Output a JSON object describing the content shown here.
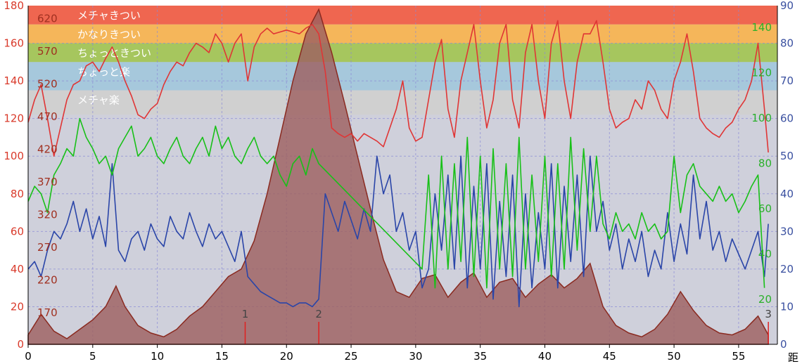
{
  "chart_data": {
    "type": "line",
    "title": "",
    "xlabel": "距",
    "xlim": [
      0,
      58
    ],
    "x_ticks": [
      "0",
      "5",
      "10",
      "15",
      "20",
      "25",
      "30",
      "35",
      "40",
      "45",
      "50",
      "55"
    ],
    "axes": {
      "left": {
        "ylim": [
          0,
          180
        ],
        "ticks": [
          "0",
          "20",
          "40",
          "60",
          "80",
          "100",
          "120",
          "140",
          "160",
          "180"
        ],
        "color": "#d93a2b"
      },
      "right": {
        "ylim": [
          0,
          90
        ],
        "ticks": [
          "0",
          "10",
          "20",
          "30",
          "40",
          "50",
          "60",
          "70",
          "80",
          "90"
        ],
        "color": "#3a50a0"
      },
      "inner_left": {
        "ticks": [
          "170",
          "220",
          "270",
          "320",
          "370",
          "420",
          "470",
          "520",
          "570",
          "620"
        ],
        "color": "#a03020"
      },
      "inner_right": {
        "ticks": [
          "20",
          "40",
          "60",
          "80",
          "100",
          "120",
          "140"
        ],
        "color": "#2ab02a"
      }
    },
    "zones": [
      {
        "label": "メチャきつい",
        "from": 170,
        "to": 180,
        "color": "#ef6650"
      },
      {
        "label": "かなりきつい",
        "from": 160,
        "to": 170,
        "color": "#f5b65a"
      },
      {
        "label": "ちょっときつい",
        "from": 150,
        "to": 160,
        "color": "#a6c65e"
      },
      {
        "label": "ちょっと楽",
        "from": 135,
        "to": 150,
        "color": "#a6c8dc"
      },
      {
        "label": "メチャ楽",
        "from": 122,
        "to": 135,
        "color": "#d0d0d0"
      }
    ],
    "background_color": "#cfd0db",
    "markers": [
      {
        "label": "1",
        "x": 16.8
      },
      {
        "label": "2",
        "x": 22.5
      },
      {
        "label": "3",
        "x": 57.3
      }
    ],
    "series": [
      {
        "axis": "left",
        "type": "area",
        "color": "#9e6060",
        "x": [
          0,
          1,
          2,
          3,
          4,
          5,
          6,
          6.8,
          7.5,
          8.5,
          9.5,
          10.5,
          11.5,
          12.5,
          13.5,
          14.5,
          15.5,
          16.5,
          17.5,
          18.5,
          19.5,
          20.5,
          21.5,
          22.5,
          23.5,
          24.5,
          25.5,
          26.5,
          27.5,
          28.5,
          29.5,
          30.5,
          31.5,
          32.5,
          33.5,
          34.5,
          35.5,
          36.5,
          37.5,
          38.5,
          39.5,
          40.5,
          41.5,
          42.5,
          43.5,
          44.5,
          45.5,
          46.5,
          47.5,
          48.5,
          49.5,
          50.5,
          51.5,
          52.5,
          53.5,
          54.5,
          55.5,
          56.5,
          57.3
        ],
        "values": [
          5,
          16,
          7,
          3,
          8,
          13,
          20,
          31,
          20,
          10,
          6,
          4,
          8,
          15,
          20,
          28,
          36,
          40,
          55,
          80,
          110,
          140,
          165,
          178,
          155,
          128,
          100,
          72,
          45,
          28,
          25,
          35,
          37,
          25,
          33,
          38,
          25,
          33,
          35,
          25,
          32,
          37,
          30,
          35,
          43,
          20,
          10,
          6,
          4,
          8,
          16,
          28,
          18,
          10,
          6,
          5,
          8,
          15,
          5
        ]
      },
      {
        "axis": "left",
        "type": "line",
        "color": "#e03535",
        "x": [
          0,
          0.5,
          1,
          1.5,
          2,
          2.5,
          3,
          3.5,
          4,
          4.5,
          5,
          5.5,
          6,
          6.5,
          7,
          7.5,
          8,
          8.5,
          9,
          9.5,
          10,
          10.5,
          11,
          11.5,
          12,
          12.5,
          13,
          13.5,
          14,
          14.5,
          15,
          15.5,
          16,
          16.5,
          17,
          17.5,
          18,
          18.5,
          19,
          19.5,
          20,
          20.5,
          21,
          21.5,
          22,
          22.5,
          23,
          23.5,
          24,
          24.5,
          25,
          25.5,
          26,
          26.5,
          27,
          27.5,
          28,
          28.5,
          29,
          29.5,
          30,
          30.5,
          31,
          31.5,
          32,
          32.5,
          33,
          33.5,
          34,
          34.5,
          35,
          35.5,
          36,
          36.5,
          37,
          37.5,
          38,
          38.5,
          39,
          39.5,
          40,
          40.5,
          41,
          41.5,
          42,
          42.5,
          43,
          43.5,
          44,
          44.5,
          45,
          45.5,
          46,
          46.5,
          47,
          47.5,
          48,
          48.5,
          49,
          49.5,
          50,
          50.5,
          51,
          51.5,
          52,
          52.5,
          53,
          53.5,
          54,
          54.5,
          55,
          55.5,
          56,
          56.5,
          57,
          57.3
        ],
        "values": [
          118,
          130,
          138,
          120,
          100,
          115,
          130,
          138,
          140,
          148,
          150,
          145,
          152,
          158,
          150,
          140,
          132,
          122,
          120,
          125,
          128,
          138,
          145,
          150,
          148,
          155,
          160,
          158,
          155,
          165,
          160,
          150,
          160,
          165,
          140,
          158,
          165,
          168,
          165,
          166,
          167,
          166,
          165,
          168,
          170,
          165,
          145,
          115,
          112,
          110,
          112,
          108,
          112,
          110,
          108,
          105,
          115,
          125,
          140,
          115,
          108,
          110,
          130,
          150,
          162,
          125,
          110,
          140,
          155,
          170,
          140,
          115,
          130,
          160,
          170,
          130,
          115,
          155,
          170,
          140,
          120,
          160,
          172,
          140,
          120,
          150,
          165,
          165,
          172,
          150,
          125,
          115,
          118,
          120,
          130,
          125,
          140,
          135,
          125,
          120,
          140,
          150,
          165,
          145,
          120,
          115,
          112,
          110,
          115,
          118,
          125,
          130,
          140,
          160,
          125,
          102
        ]
      },
      {
        "axis": "right",
        "type": "line",
        "color": "#2a45a8",
        "x": [
          0,
          0.5,
          1,
          1.5,
          2,
          2.5,
          3,
          3.5,
          4,
          4.5,
          5,
          5.5,
          6,
          6.5,
          7,
          7.5,
          8,
          8.5,
          9,
          9.5,
          10,
          10.5,
          11,
          11.5,
          12,
          12.5,
          13,
          13.5,
          14,
          14.5,
          15,
          15.5,
          16,
          16.5,
          17,
          17.5,
          18,
          18.5,
          19,
          19.5,
          20,
          20.5,
          21,
          21.5,
          22,
          22.5,
          23,
          23.5,
          24,
          24.5,
          25,
          25.5,
          26,
          26.5,
          27,
          27.5,
          28,
          28.5,
          29,
          29.5,
          30,
          30.5,
          31,
          31.5,
          32,
          32.5,
          33,
          33.5,
          34,
          34.5,
          35,
          35.5,
          36,
          36.5,
          37,
          37.5,
          38,
          38.5,
          39,
          39.5,
          40,
          40.5,
          41,
          41.5,
          42,
          42.5,
          43,
          43.5,
          44,
          44.5,
          45,
          45.5,
          46,
          46.5,
          47,
          47.5,
          48,
          48.5,
          49,
          49.5,
          50,
          50.5,
          51,
          51.5,
          52,
          52.5,
          53,
          53.5,
          54,
          54.5,
          55,
          55.5,
          56,
          56.5,
          57,
          57.3
        ],
        "values": [
          20,
          22,
          18,
          25,
          30,
          28,
          32,
          38,
          30,
          36,
          28,
          34,
          26,
          48,
          25,
          22,
          28,
          30,
          25,
          32,
          28,
          26,
          34,
          30,
          28,
          35,
          30,
          26,
          32,
          28,
          30,
          26,
          22,
          30,
          18,
          16,
          14,
          13,
          12,
          11,
          11,
          10,
          11,
          11,
          10,
          12,
          40,
          35,
          30,
          38,
          33,
          28,
          36,
          30,
          50,
          40,
          45,
          30,
          35,
          25,
          30,
          15,
          20,
          40,
          25,
          45,
          20,
          50,
          15,
          42,
          20,
          48,
          12,
          38,
          18,
          45,
          10,
          40,
          15,
          35,
          20,
          48,
          15,
          42,
          22,
          45,
          18,
          50,
          30,
          38,
          25,
          32,
          20,
          28,
          22,
          30,
          18,
          25,
          20,
          35,
          22,
          32,
          24,
          45,
          28,
          38,
          25,
          30,
          22,
          28,
          24,
          20,
          25,
          30,
          18,
          32
        ]
      },
      {
        "axis": "right",
        "type": "line",
        "color": "#18c018",
        "x": [
          0,
          0.5,
          1,
          1.5,
          2,
          2.5,
          3,
          3.5,
          4,
          4.5,
          5,
          5.5,
          6,
          6.5,
          7,
          7.5,
          8,
          8.5,
          9,
          9.5,
          10,
          10.5,
          11,
          11.5,
          12,
          12.5,
          13,
          13.5,
          14,
          14.5,
          15,
          15.5,
          16,
          16.5,
          17,
          17.5,
          18,
          18.5,
          19,
          19.5,
          20,
          20.5,
          21,
          21.5,
          22,
          22.5,
          30.5,
          31,
          31.5,
          32,
          32.5,
          33,
          33.5,
          34,
          34.5,
          35,
          35.5,
          36,
          36.5,
          37,
          37.5,
          38,
          38.5,
          39,
          39.5,
          40,
          40.5,
          41,
          41.5,
          42,
          42.5,
          43,
          43.5,
          44,
          44.5,
          45,
          45.5,
          46,
          46.5,
          47,
          47.5,
          48,
          48.5,
          49,
          49.5,
          50,
          50.5,
          51,
          51.5,
          52,
          52.5,
          53,
          53.5,
          54,
          54.5,
          55,
          55.5,
          56,
          56.5,
          57
        ],
        "values": [
          38,
          42,
          40,
          35,
          45,
          48,
          52,
          50,
          60,
          55,
          52,
          48,
          50,
          45,
          52,
          55,
          58,
          50,
          52,
          55,
          50,
          48,
          52,
          55,
          50,
          48,
          52,
          55,
          50,
          58,
          52,
          55,
          50,
          48,
          52,
          55,
          50,
          48,
          50,
          45,
          42,
          48,
          50,
          45,
          52,
          48,
          20,
          45,
          15,
          50,
          20,
          48,
          22,
          55,
          18,
          50,
          15,
          52,
          20,
          48,
          18,
          55,
          20,
          45,
          22,
          50,
          18,
          48,
          20,
          55,
          25,
          52,
          30,
          50,
          32,
          28,
          35,
          30,
          32,
          28,
          35,
          30,
          32,
          28,
          30,
          50,
          35,
          45,
          48,
          42,
          40,
          38,
          42,
          38,
          40,
          35,
          38,
          42,
          45,
          15
        ]
      }
    ]
  }
}
